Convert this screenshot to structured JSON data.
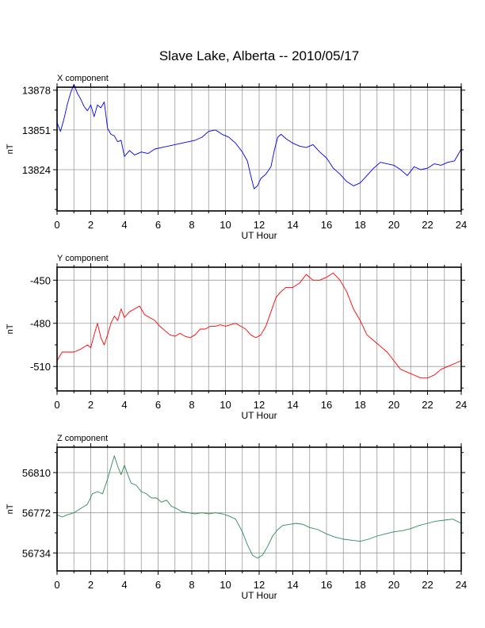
{
  "title": "Slave Lake, Alberta -- 2010/05/17",
  "chart_data": [
    {
      "type": "line",
      "component_label": "X component",
      "ylabel": "nT",
      "xlabel": "UT Hour",
      "xlim": [
        0,
        24
      ],
      "ylim": [
        13796,
        13880
      ],
      "x_ticks": [
        0,
        2,
        4,
        6,
        8,
        10,
        12,
        14,
        16,
        18,
        20,
        22,
        24
      ],
      "y_ticks": [
        13824,
        13851,
        13878
      ],
      "grid": true,
      "color": "#0000ee",
      "series": [
        {
          "points": [
            [
              0,
              13856
            ],
            [
              0.2,
              13850
            ],
            [
              0.4,
              13858
            ],
            [
              0.6,
              13868
            ],
            [
              0.8,
              13876
            ],
            [
              1.0,
              13882
            ],
            [
              1.2,
              13876
            ],
            [
              1.4,
              13872
            ],
            [
              1.6,
              13867
            ],
            [
              1.8,
              13864
            ],
            [
              2.0,
              13868
            ],
            [
              2.2,
              13860
            ],
            [
              2.4,
              13868
            ],
            [
              2.6,
              13866
            ],
            [
              2.8,
              13870
            ],
            [
              3.0,
              13852
            ],
            [
              3.2,
              13848
            ],
            [
              3.4,
              13847
            ],
            [
              3.6,
              13843
            ],
            [
              3.8,
              13844
            ],
            [
              4.0,
              13833
            ],
            [
              4.3,
              13837
            ],
            [
              4.6,
              13834
            ],
            [
              5.0,
              13836
            ],
            [
              5.4,
              13835
            ],
            [
              5.8,
              13838
            ],
            [
              6.2,
              13839
            ],
            [
              6.6,
              13840
            ],
            [
              7.0,
              13841
            ],
            [
              7.4,
              13842
            ],
            [
              7.8,
              13843
            ],
            [
              8.2,
              13844
            ],
            [
              8.6,
              13846
            ],
            [
              9.0,
              13850
            ],
            [
              9.4,
              13851
            ],
            [
              9.8,
              13848
            ],
            [
              10.2,
              13846
            ],
            [
              10.6,
              13842
            ],
            [
              11.0,
              13836
            ],
            [
              11.3,
              13830
            ],
            [
              11.5,
              13820
            ],
            [
              11.7,
              13811
            ],
            [
              11.9,
              13813
            ],
            [
              12.1,
              13818
            ],
            [
              12.4,
              13821
            ],
            [
              12.7,
              13826
            ],
            [
              12.9,
              13837
            ],
            [
              13.1,
              13846
            ],
            [
              13.3,
              13848
            ],
            [
              13.6,
              13845
            ],
            [
              14.0,
              13842
            ],
            [
              14.4,
              13840
            ],
            [
              14.8,
              13839
            ],
            [
              15.2,
              13841
            ],
            [
              15.6,
              13836
            ],
            [
              16.0,
              13832
            ],
            [
              16.4,
              13825
            ],
            [
              16.8,
              13821
            ],
            [
              17.2,
              13816
            ],
            [
              17.6,
              13813
            ],
            [
              18.0,
              13815
            ],
            [
              18.4,
              13820
            ],
            [
              18.8,
              13825
            ],
            [
              19.2,
              13829
            ],
            [
              19.6,
              13828
            ],
            [
              20.0,
              13827
            ],
            [
              20.4,
              13824
            ],
            [
              20.8,
              13820
            ],
            [
              21.2,
              13826
            ],
            [
              21.6,
              13824
            ],
            [
              22.0,
              13825
            ],
            [
              22.4,
              13828
            ],
            [
              22.8,
              13827
            ],
            [
              23.2,
              13829
            ],
            [
              23.6,
              13830
            ],
            [
              24.0,
              13838
            ]
          ]
        }
      ]
    },
    {
      "type": "line",
      "component_label": "Y component",
      "ylabel": "nT",
      "xlabel": "UT Hour",
      "xlim": [
        0,
        24
      ],
      "ylim": [
        -527,
        -441
      ],
      "x_ticks": [
        0,
        2,
        4,
        6,
        8,
        10,
        12,
        14,
        16,
        18,
        20,
        22,
        24
      ],
      "y_ticks": [
        -510,
        -480,
        -450
      ],
      "grid": true,
      "color": "#ff0000",
      "series": [
        {
          "points": [
            [
              0,
              -506
            ],
            [
              0.3,
              -500
            ],
            [
              0.6,
              -500
            ],
            [
              1.0,
              -500
            ],
            [
              1.4,
              -498
            ],
            [
              1.8,
              -495
            ],
            [
              2.0,
              -497
            ],
            [
              2.2,
              -488
            ],
            [
              2.4,
              -480
            ],
            [
              2.6,
              -490
            ],
            [
              2.8,
              -495
            ],
            [
              3.0,
              -488
            ],
            [
              3.2,
              -480
            ],
            [
              3.4,
              -475
            ],
            [
              3.6,
              -478
            ],
            [
              3.8,
              -470
            ],
            [
              4.0,
              -476
            ],
            [
              4.3,
              -472
            ],
            [
              4.6,
              -470
            ],
            [
              4.9,
              -468
            ],
            [
              5.2,
              -474
            ],
            [
              5.5,
              -476
            ],
            [
              5.8,
              -478
            ],
            [
              6.1,
              -482
            ],
            [
              6.4,
              -485
            ],
            [
              6.7,
              -488
            ],
            [
              7.0,
              -489
            ],
            [
              7.3,
              -487
            ],
            [
              7.6,
              -489
            ],
            [
              7.9,
              -490
            ],
            [
              8.2,
              -488
            ],
            [
              8.5,
              -484
            ],
            [
              8.8,
              -484
            ],
            [
              9.1,
              -482
            ],
            [
              9.4,
              -482
            ],
            [
              9.7,
              -481
            ],
            [
              10.0,
              -482
            ],
            [
              10.3,
              -481
            ],
            [
              10.6,
              -480
            ],
            [
              10.9,
              -482
            ],
            [
              11.2,
              -484
            ],
            [
              11.5,
              -488
            ],
            [
              11.8,
              -490
            ],
            [
              12.1,
              -488
            ],
            [
              12.4,
              -482
            ],
            [
              12.7,
              -472
            ],
            [
              13.0,
              -462
            ],
            [
              13.3,
              -458
            ],
            [
              13.6,
              -455
            ],
            [
              14.0,
              -455
            ],
            [
              14.4,
              -452
            ],
            [
              14.8,
              -446
            ],
            [
              15.2,
              -450
            ],
            [
              15.6,
              -450
            ],
            [
              16.0,
              -448
            ],
            [
              16.4,
              -445
            ],
            [
              16.8,
              -450
            ],
            [
              17.2,
              -458
            ],
            [
              17.6,
              -470
            ],
            [
              18.0,
              -478
            ],
            [
              18.4,
              -488
            ],
            [
              18.8,
              -492
            ],
            [
              19.2,
              -496
            ],
            [
              19.6,
              -500
            ],
            [
              20.0,
              -506
            ],
            [
              20.4,
              -512
            ],
            [
              20.8,
              -514
            ],
            [
              21.2,
              -516
            ],
            [
              21.6,
              -518
            ],
            [
              22.0,
              -518
            ],
            [
              22.4,
              -516
            ],
            [
              22.8,
              -512
            ],
            [
              23.2,
              -510
            ],
            [
              23.6,
              -508
            ],
            [
              24.0,
              -506
            ]
          ]
        }
      ]
    },
    {
      "type": "line",
      "component_label": "Z component",
      "ylabel": "nT",
      "xlabel": "UT Hour",
      "xlim": [
        0,
        24
      ],
      "ylim": [
        56717,
        56834
      ],
      "x_ticks": [
        0,
        2,
        4,
        6,
        8,
        10,
        12,
        14,
        16,
        18,
        20,
        22,
        24
      ],
      "y_ticks": [
        56734,
        56772,
        56810
      ],
      "grid": true,
      "color": "#2e8b57",
      "series": [
        {
          "points": [
            [
              0,
              56770
            ],
            [
              0.3,
              56768
            ],
            [
              0.6,
              56770
            ],
            [
              1.0,
              56772
            ],
            [
              1.4,
              56776
            ],
            [
              1.8,
              56780
            ],
            [
              2.1,
              56790
            ],
            [
              2.4,
              56792
            ],
            [
              2.7,
              56790
            ],
            [
              3.0,
              56804
            ],
            [
              3.2,
              56815
            ],
            [
              3.4,
              56826
            ],
            [
              3.6,
              56816
            ],
            [
              3.8,
              56808
            ],
            [
              4.0,
              56817
            ],
            [
              4.2,
              56808
            ],
            [
              4.4,
              56800
            ],
            [
              4.7,
              56798
            ],
            [
              5.0,
              56792
            ],
            [
              5.3,
              56790
            ],
            [
              5.6,
              56786
            ],
            [
              5.9,
              56786
            ],
            [
              6.2,
              56782
            ],
            [
              6.5,
              56784
            ],
            [
              6.8,
              56778
            ],
            [
              7.1,
              56776
            ],
            [
              7.4,
              56773
            ],
            [
              7.8,
              56772
            ],
            [
              8.2,
              56771
            ],
            [
              8.6,
              56772
            ],
            [
              9.0,
              56771
            ],
            [
              9.4,
              56772
            ],
            [
              9.8,
              56771
            ],
            [
              10.2,
              56769
            ],
            [
              10.6,
              56766
            ],
            [
              11.0,
              56754
            ],
            [
              11.3,
              56742
            ],
            [
              11.6,
              56732
            ],
            [
              11.9,
              56729
            ],
            [
              12.2,
              56732
            ],
            [
              12.5,
              56740
            ],
            [
              12.8,
              56750
            ],
            [
              13.1,
              56756
            ],
            [
              13.4,
              56760
            ],
            [
              13.8,
              56761
            ],
            [
              14.2,
              56762
            ],
            [
              14.6,
              56761
            ],
            [
              15.0,
              56758
            ],
            [
              15.5,
              56756
            ],
            [
              16.0,
              56752
            ],
            [
              16.5,
              56749
            ],
            [
              17.0,
              56747
            ],
            [
              17.5,
              56746
            ],
            [
              18.0,
              56745
            ],
            [
              18.5,
              56747
            ],
            [
              19.0,
              56750
            ],
            [
              19.5,
              56752
            ],
            [
              20.0,
              56754
            ],
            [
              20.5,
              56755
            ],
            [
              21.0,
              56757
            ],
            [
              21.5,
              56760
            ],
            [
              22.0,
              56762
            ],
            [
              22.5,
              56764
            ],
            [
              23.0,
              56765
            ],
            [
              23.5,
              56766
            ],
            [
              24.0,
              56762
            ]
          ]
        }
      ]
    }
  ]
}
